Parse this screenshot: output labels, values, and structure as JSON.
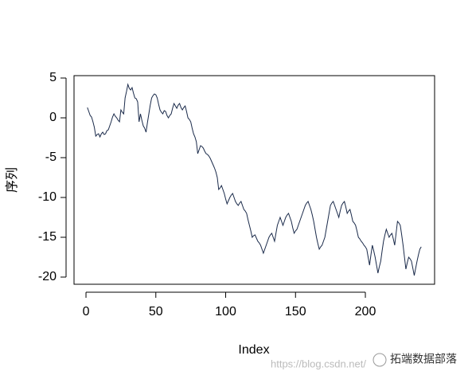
{
  "chart_data": {
    "type": "line",
    "xlabel": "Index",
    "ylabel": "序列",
    "x": [
      1,
      2,
      3,
      4,
      5,
      6,
      7,
      8,
      9,
      10,
      11,
      12,
      13,
      14,
      15,
      16,
      17,
      18,
      19,
      20,
      21,
      22,
      23,
      24,
      25,
      26,
      27,
      28,
      29,
      30,
      31,
      32,
      33,
      34,
      35,
      36,
      37,
      38,
      39,
      40,
      41,
      42,
      43,
      44,
      45,
      46,
      47,
      48,
      49,
      50,
      51,
      52,
      53,
      54,
      55,
      56,
      57,
      58,
      59,
      60,
      61,
      62,
      63,
      64,
      65,
      66,
      67,
      68,
      69,
      70,
      71,
      72,
      73,
      74,
      75,
      76,
      77,
      78,
      79,
      80,
      81,
      82,
      83,
      84,
      85,
      86,
      87,
      88,
      89,
      90,
      91,
      92,
      93,
      94,
      95,
      96,
      97,
      98,
      99,
      100,
      101,
      102,
      103,
      104,
      105,
      106,
      107,
      108,
      109,
      110,
      111,
      112,
      113,
      114,
      115,
      116,
      117,
      118,
      119,
      120,
      121,
      122,
      123,
      124,
      125,
      126,
      127,
      128,
      129,
      130,
      131,
      132,
      133,
      134,
      135,
      136,
      137,
      138,
      139,
      140,
      141,
      142,
      143,
      144,
      145,
      146,
      147,
      148,
      149,
      150,
      151,
      152,
      153,
      154,
      155,
      156,
      157,
      158,
      159,
      160,
      161,
      162,
      163,
      164,
      165,
      166,
      167,
      168,
      169,
      170,
      171,
      172,
      173,
      174,
      175,
      176,
      177,
      178,
      179,
      180,
      181,
      182,
      183,
      184,
      185,
      186,
      187,
      188,
      189,
      190,
      191,
      192,
      193,
      194,
      195,
      196,
      197,
      198,
      199,
      200,
      201,
      202,
      203,
      204,
      205,
      206,
      207,
      208,
      209,
      210,
      211,
      212,
      213,
      214,
      215,
      216,
      217,
      218,
      219,
      220,
      221,
      222,
      223,
      224,
      225,
      226,
      227,
      228,
      229,
      230,
      231,
      232,
      233,
      234,
      235,
      236,
      237,
      238,
      239,
      240
    ],
    "series": [
      {
        "color": "#1a2a4a",
        "values": [
          1.3,
          0.8,
          0.3,
          0.1,
          -0.5,
          -1.2,
          -2.3,
          -2.1,
          -2.0,
          -2.4,
          -2.0,
          -1.8,
          -2.1,
          -2.0,
          -1.6,
          -1.5,
          -1.0,
          -0.5,
          0.1,
          0.5,
          0.2,
          0.0,
          -0.3,
          -0.5,
          1.0,
          0.7,
          0.5,
          2.5,
          3.3,
          4.2,
          3.7,
          3.5,
          3.8,
          3.1,
          2.5,
          2.4,
          2.0,
          -0.5,
          0.5,
          -0.3,
          -1.0,
          -1.3,
          -1.8,
          -0.6,
          0.5,
          1.6,
          2.5,
          2.8,
          3.0,
          2.9,
          2.5,
          1.7,
          1.0,
          0.7,
          0.5,
          0.9,
          0.8,
          0.3,
          0.0,
          0.3,
          0.5,
          1.2,
          1.8,
          1.5,
          1.2,
          1.6,
          1.8,
          1.3,
          1.0,
          1.3,
          1.5,
          0.8,
          0.0,
          -0.2,
          -0.5,
          -1.3,
          -2.0,
          -2.4,
          -3.0,
          -4.5,
          -4.0,
          -3.5,
          -3.6,
          -3.8,
          -4.2,
          -4.5,
          -4.6,
          -4.8,
          -5.1,
          -5.5,
          -5.9,
          -6.3,
          -6.8,
          -7.5,
          -9.0,
          -8.8,
          -8.5,
          -9.0,
          -9.5,
          -10.2,
          -10.8,
          -10.4,
          -10.0,
          -9.7,
          -9.5,
          -10.0,
          -10.5,
          -10.8,
          -11.0,
          -10.7,
          -10.5,
          -11.0,
          -11.5,
          -11.7,
          -12.0,
          -12.8,
          -13.5,
          -14.2,
          -15.0,
          -14.8,
          -14.7,
          -15.1,
          -15.5,
          -15.7,
          -16.0,
          -16.5,
          -17.0,
          -16.5,
          -16.0,
          -15.5,
          -15.0,
          -14.7,
          -14.5,
          -15.0,
          -15.5,
          -14.5,
          -13.5,
          -13.0,
          -12.5,
          -13.0,
          -13.5,
          -13.0,
          -12.5,
          -12.2,
          -12.0,
          -12.5,
          -13.0,
          -13.8,
          -14.5,
          -14.2,
          -14.0,
          -13.5,
          -13.0,
          -12.5,
          -12.0,
          -11.5,
          -11.0,
          -10.7,
          -10.5,
          -11.0,
          -11.5,
          -12.2,
          -13.0,
          -14.0,
          -15.0,
          -15.8,
          -16.5,
          -16.2,
          -16.0,
          -15.5,
          -15.0,
          -14.0,
          -13.0,
          -12.0,
          -11.0,
          -10.7,
          -10.5,
          -11.0,
          -11.5,
          -12.0,
          -12.5,
          -11.7,
          -11.0,
          -10.7,
          -10.5,
          -11.2,
          -12.0,
          -11.7,
          -11.5,
          -12.2,
          -13.0,
          -13.2,
          -13.5,
          -14.2,
          -15.0,
          -15.2,
          -15.5,
          -15.7,
          -16.0,
          -16.2,
          -16.5,
          -17.5,
          -18.5,
          -17.2,
          -16.0,
          -16.7,
          -17.5,
          -18.5,
          -19.5,
          -18.7,
          -18.0,
          -16.7,
          -15.5,
          -14.7,
          -14.0,
          -14.5,
          -15.0,
          -14.7,
          -14.5,
          -15.2,
          -16.0,
          -14.5,
          -13.0,
          -13.2,
          -13.5,
          -14.7,
          -16.0,
          -17.5,
          -19.0,
          -18.2,
          -17.5,
          -17.7,
          -18.0,
          -18.9,
          -19.8,
          -18.9,
          -18.0,
          -17.2,
          -16.5,
          -16.2
        ]
      }
    ],
    "xlim": [
      -8.56,
      249.56
    ],
    "ylim": [
      -20.9,
      5.3
    ],
    "xticks": [
      0,
      50,
      100,
      150,
      200
    ],
    "yticks": [
      -20,
      -15,
      -10,
      -5,
      0,
      5
    ],
    "watermark": "https://blog.csdn.net/",
    "brand": "拓端数据部落"
  }
}
